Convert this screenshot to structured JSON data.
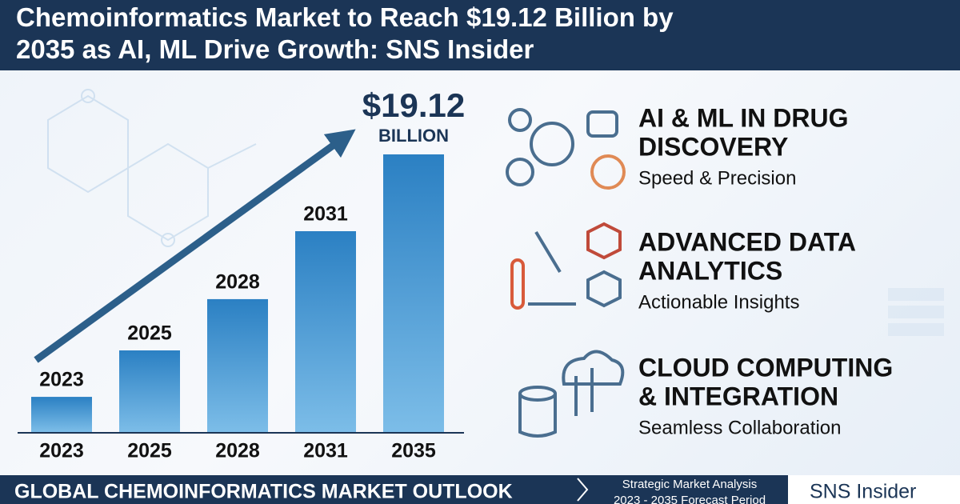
{
  "header": {
    "title": "Chemoinformatics Market to Reach $19.12 Billion by 2035 as AI, ML Drive Growth: SNS Insider"
  },
  "chart_data": {
    "type": "bar",
    "categories": [
      "2023",
      "2025",
      "2028",
      "2031",
      "2035"
    ],
    "values": [
      2.42,
      5.62,
      9.15,
      13.83,
      19.12
    ],
    "ylim": [
      0,
      20
    ],
    "color": "#2b80c3",
    "annotation": "$19.12",
    "annotation_unit": "BILLION"
  },
  "features": [
    {
      "title": [
        "AI & ML IN DRUG",
        "DISCOVERY"
      ],
      "subtitle": "Speed & Precision"
    },
    {
      "title": [
        "ADVANCED DATA",
        "ANALYTICS"
      ],
      "subtitle": "Actionable Insights"
    },
    {
      "title": [
        "CLOUD COMPUTING",
        "& INTEGRATION"
      ],
      "subtitle": "Seamless Collaboration"
    }
  ],
  "footer": {
    "headline": "GLOBAL CHEMOINFORMATICS MARKET OUTLOOK",
    "note": [
      "Strategic Market Analysis",
      "2023 - 2035 Forecast Period"
    ],
    "brand": "SNS Insider"
  }
}
